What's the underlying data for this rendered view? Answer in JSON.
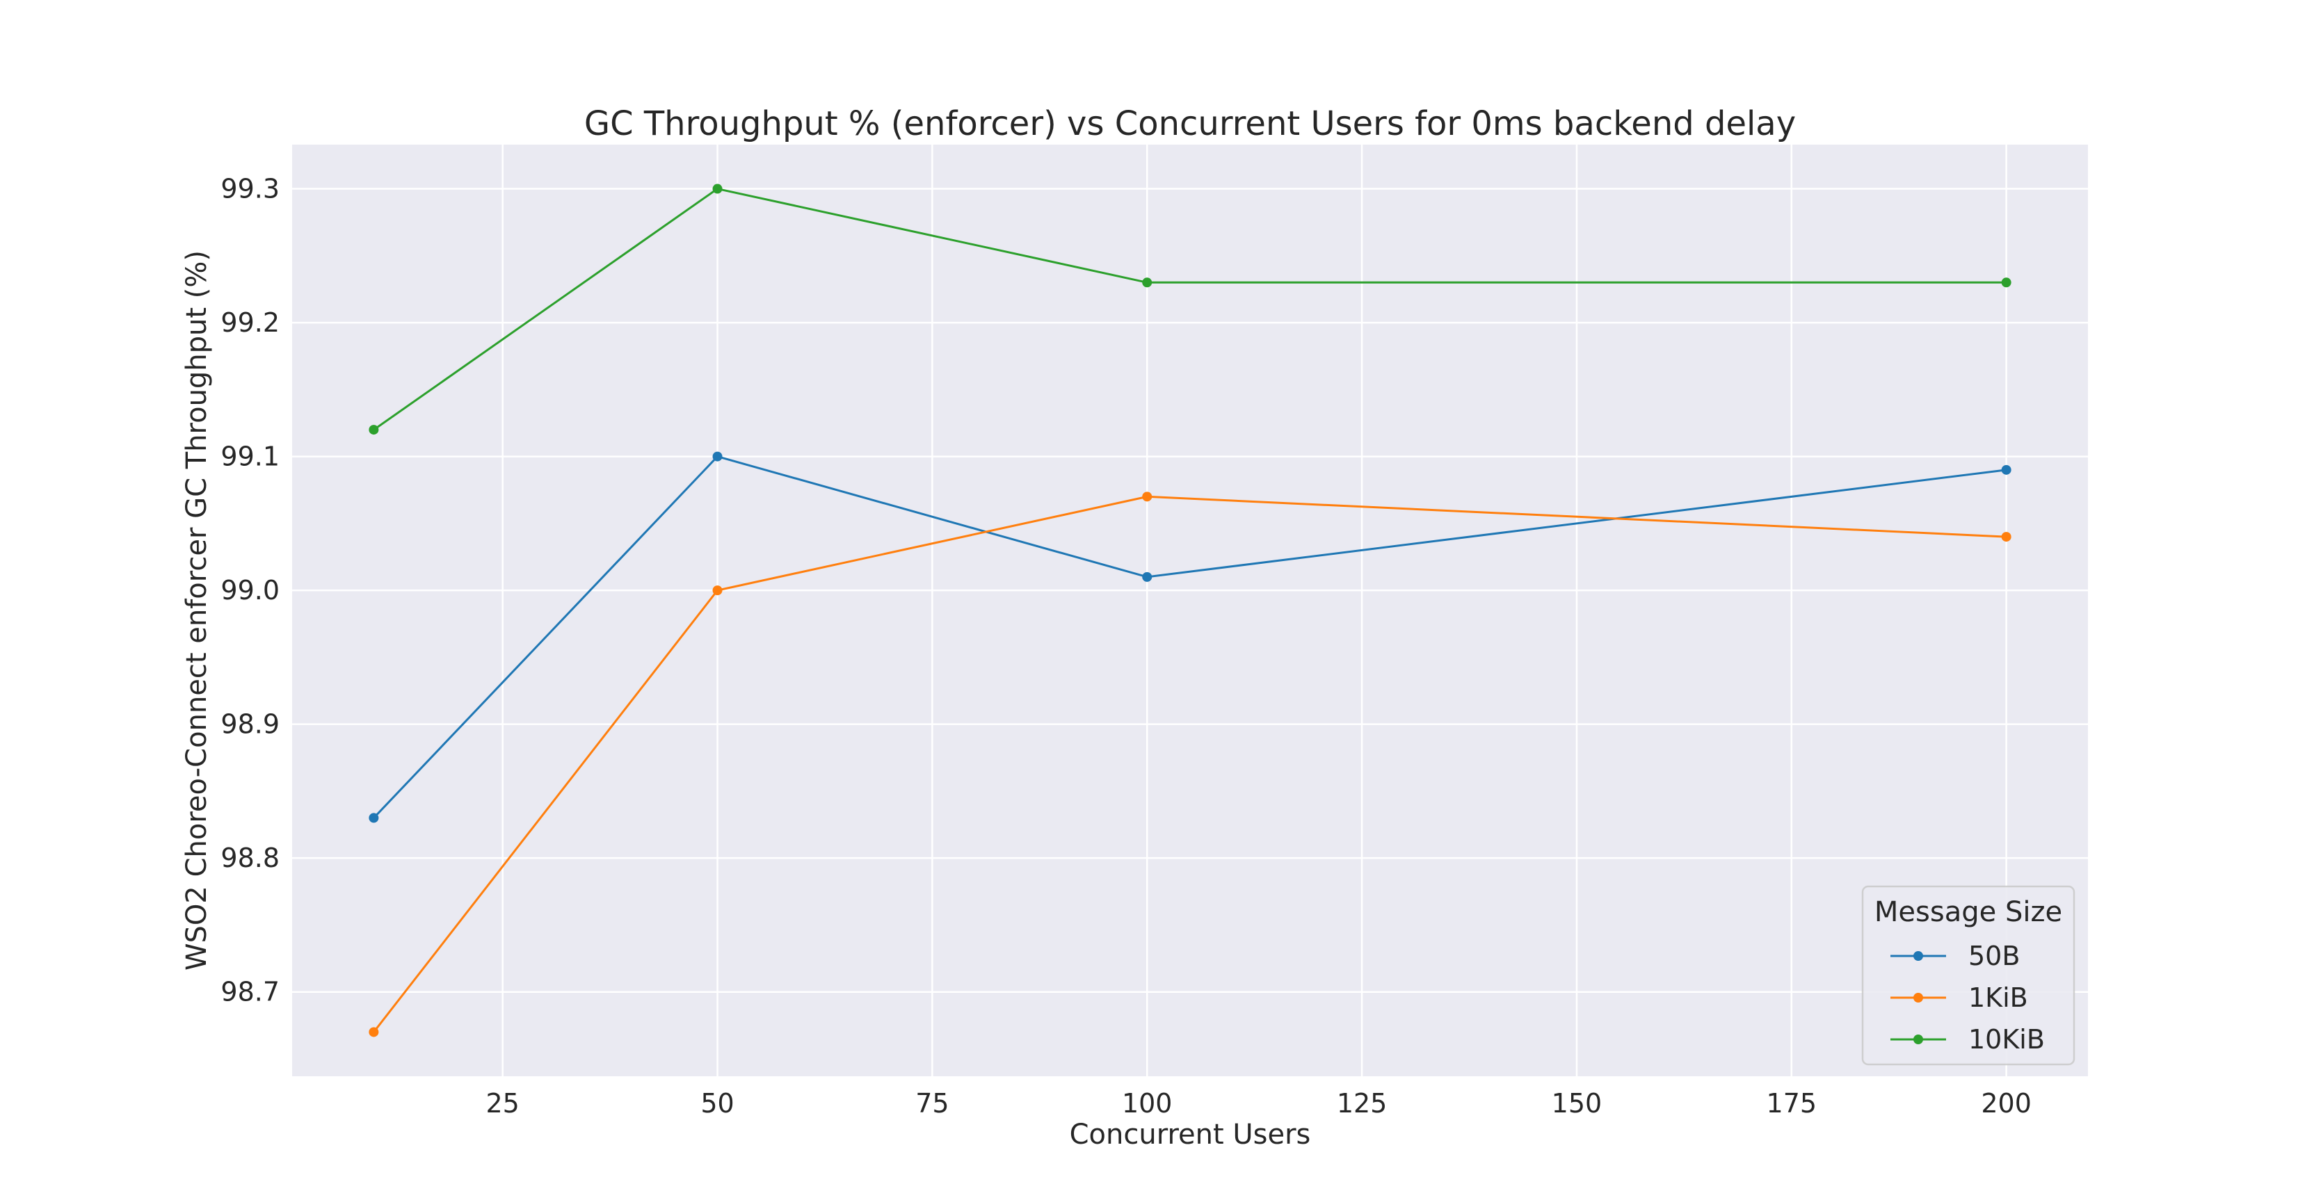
{
  "chart_data": {
    "type": "line",
    "title": "GC Throughput % (enforcer) vs Concurrent Users for 0ms backend delay",
    "xlabel": "Concurrent Users",
    "ylabel": "WSO2 Choreo-Connect enforcer GC Throughput (%)",
    "x": [
      10,
      50,
      100,
      200
    ],
    "xlim": [
      0.5,
      209.5
    ],
    "ylim": [
      98.637,
      99.333
    ],
    "xticks": [
      25,
      50,
      75,
      100,
      125,
      150,
      175,
      200
    ],
    "yticks": [
      98.7,
      98.8,
      98.9,
      99.0,
      99.1,
      99.2,
      99.3
    ],
    "xtick_labels": [
      "25",
      "50",
      "75",
      "100",
      "125",
      "150",
      "175",
      "200"
    ],
    "ytick_labels": [
      "98.7",
      "98.8",
      "98.9",
      "99.0",
      "99.1",
      "99.2",
      "99.3"
    ],
    "grid": true,
    "legend": {
      "title": "Message Size",
      "placement": "lower-right"
    },
    "series": [
      {
        "name": "50B",
        "color": "#1f77b4",
        "values": [
          98.83,
          99.1,
          99.01,
          99.09
        ]
      },
      {
        "name": "1KiB",
        "color": "#ff7f0e",
        "values": [
          98.67,
          99.0,
          99.07,
          99.04
        ]
      },
      {
        "name": "10KiB",
        "color": "#2ca02c",
        "values": [
          99.12,
          99.3,
          99.23,
          99.23
        ]
      }
    ]
  }
}
